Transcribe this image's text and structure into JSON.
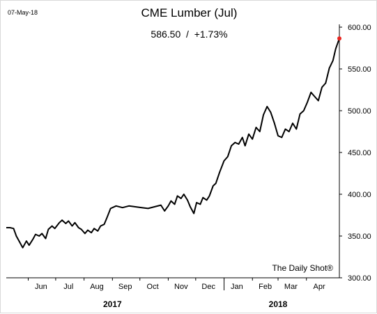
{
  "header": {
    "date": "07-May-18",
    "title": "CME Lumber (Jul)",
    "subtitle": "586.50  /  +1.73%"
  },
  "source": "The Daily Shot®",
  "colors": {
    "line": "#000000",
    "last_point": "#e8251f",
    "axis": "#000000"
  },
  "chart_data": {
    "type": "line",
    "title": "CME Lumber (Jul)",
    "xlabel": "",
    "ylabel": "",
    "ylim": [
      300,
      600
    ],
    "yticks": [
      "600.00",
      "550.00",
      "500.00",
      "450.00",
      "400.00",
      "350.00",
      "300.00"
    ],
    "ytick_values": [
      600,
      550,
      500,
      450,
      400,
      350,
      300
    ],
    "xlim": [
      "2017-05-08",
      "2018-05-07"
    ],
    "month_ticks": [
      "Jun",
      "Jul",
      "Aug",
      "Sep",
      "Oct",
      "Nov",
      "Dec",
      "Jan",
      "Feb",
      "Mar",
      "Apr"
    ],
    "month_dates": [
      "2017-06-15",
      "2017-07-15",
      "2017-08-15",
      "2017-09-15",
      "2017-10-15",
      "2017-11-15",
      "2017-12-15",
      "2018-01-15",
      "2018-02-15",
      "2018-03-15",
      "2018-04-15"
    ],
    "years": [
      {
        "label": "2017",
        "date": "2017-09-01"
      },
      {
        "label": "2018",
        "date": "2018-03-01"
      }
    ],
    "year_divider": "2018-01-01",
    "grid": false,
    "last_point": {
      "x": "2018-05-07",
      "y": 586.5
    },
    "series": [
      {
        "x": [
          "2017-05-08",
          "2017-05-12",
          "2017-05-16",
          "2017-05-19",
          "2017-05-23",
          "2017-05-26",
          "2017-05-30",
          "2017-06-02",
          "2017-06-06",
          "2017-06-09",
          "2017-06-13",
          "2017-06-16",
          "2017-06-20",
          "2017-06-23",
          "2017-06-27",
          "2017-06-30",
          "2017-07-05",
          "2017-07-08",
          "2017-07-12",
          "2017-07-15",
          "2017-07-19",
          "2017-07-22",
          "2017-07-26",
          "2017-07-29",
          "2017-08-02",
          "2017-08-05",
          "2017-08-09",
          "2017-08-12",
          "2017-08-16",
          "2017-08-19",
          "2017-08-23",
          "2017-08-26",
          "2017-08-30",
          "2017-09-05",
          "2017-09-12",
          "2017-09-19",
          "2017-09-26",
          "2017-10-03",
          "2017-10-10",
          "2017-10-17",
          "2017-10-24",
          "2017-10-28",
          "2017-11-01",
          "2017-11-04",
          "2017-11-08",
          "2017-11-11",
          "2017-11-15",
          "2017-11-18",
          "2017-11-22",
          "2017-11-25",
          "2017-11-29",
          "2017-12-02",
          "2017-12-06",
          "2017-12-09",
          "2017-12-13",
          "2017-12-16",
          "2017-12-20",
          "2017-12-23",
          "2017-12-27",
          "2018-01-01",
          "2018-01-05",
          "2018-01-09",
          "2018-01-13",
          "2018-01-17",
          "2018-01-21",
          "2018-01-24",
          "2018-01-28",
          "2018-02-01",
          "2018-02-05",
          "2018-02-09",
          "2018-02-13",
          "2018-02-17",
          "2018-02-21",
          "2018-02-25",
          "2018-03-01",
          "2018-03-05",
          "2018-03-09",
          "2018-03-13",
          "2018-03-17",
          "2018-03-21",
          "2018-03-25",
          "2018-03-29",
          "2018-04-02",
          "2018-04-06",
          "2018-04-10",
          "2018-04-14",
          "2018-04-18",
          "2018-04-22",
          "2018-04-26",
          "2018-04-30",
          "2018-05-03",
          "2018-05-07"
        ],
        "y": [
          360,
          360,
          359,
          350,
          342,
          336,
          344,
          339,
          346,
          352,
          350,
          353,
          347,
          358,
          362,
          359,
          366,
          369,
          365,
          368,
          362,
          366,
          360,
          358,
          353,
          357,
          354,
          359,
          356,
          362,
          364,
          372,
          383,
          386,
          384,
          386,
          385,
          384,
          383,
          385,
          387,
          380,
          386,
          392,
          388,
          398,
          395,
          400,
          393,
          385,
          377,
          390,
          388,
          396,
          393,
          398,
          410,
          413,
          426,
          440,
          445,
          458,
          462,
          460,
          468,
          458,
          472,
          466,
          480,
          475,
          495,
          505,
          498,
          485,
          470,
          468,
          478,
          475,
          485,
          478,
          496,
          500,
          510,
          522,
          517,
          512,
          528,
          533,
          551,
          560,
          574,
          586.5
        ]
      }
    ]
  }
}
